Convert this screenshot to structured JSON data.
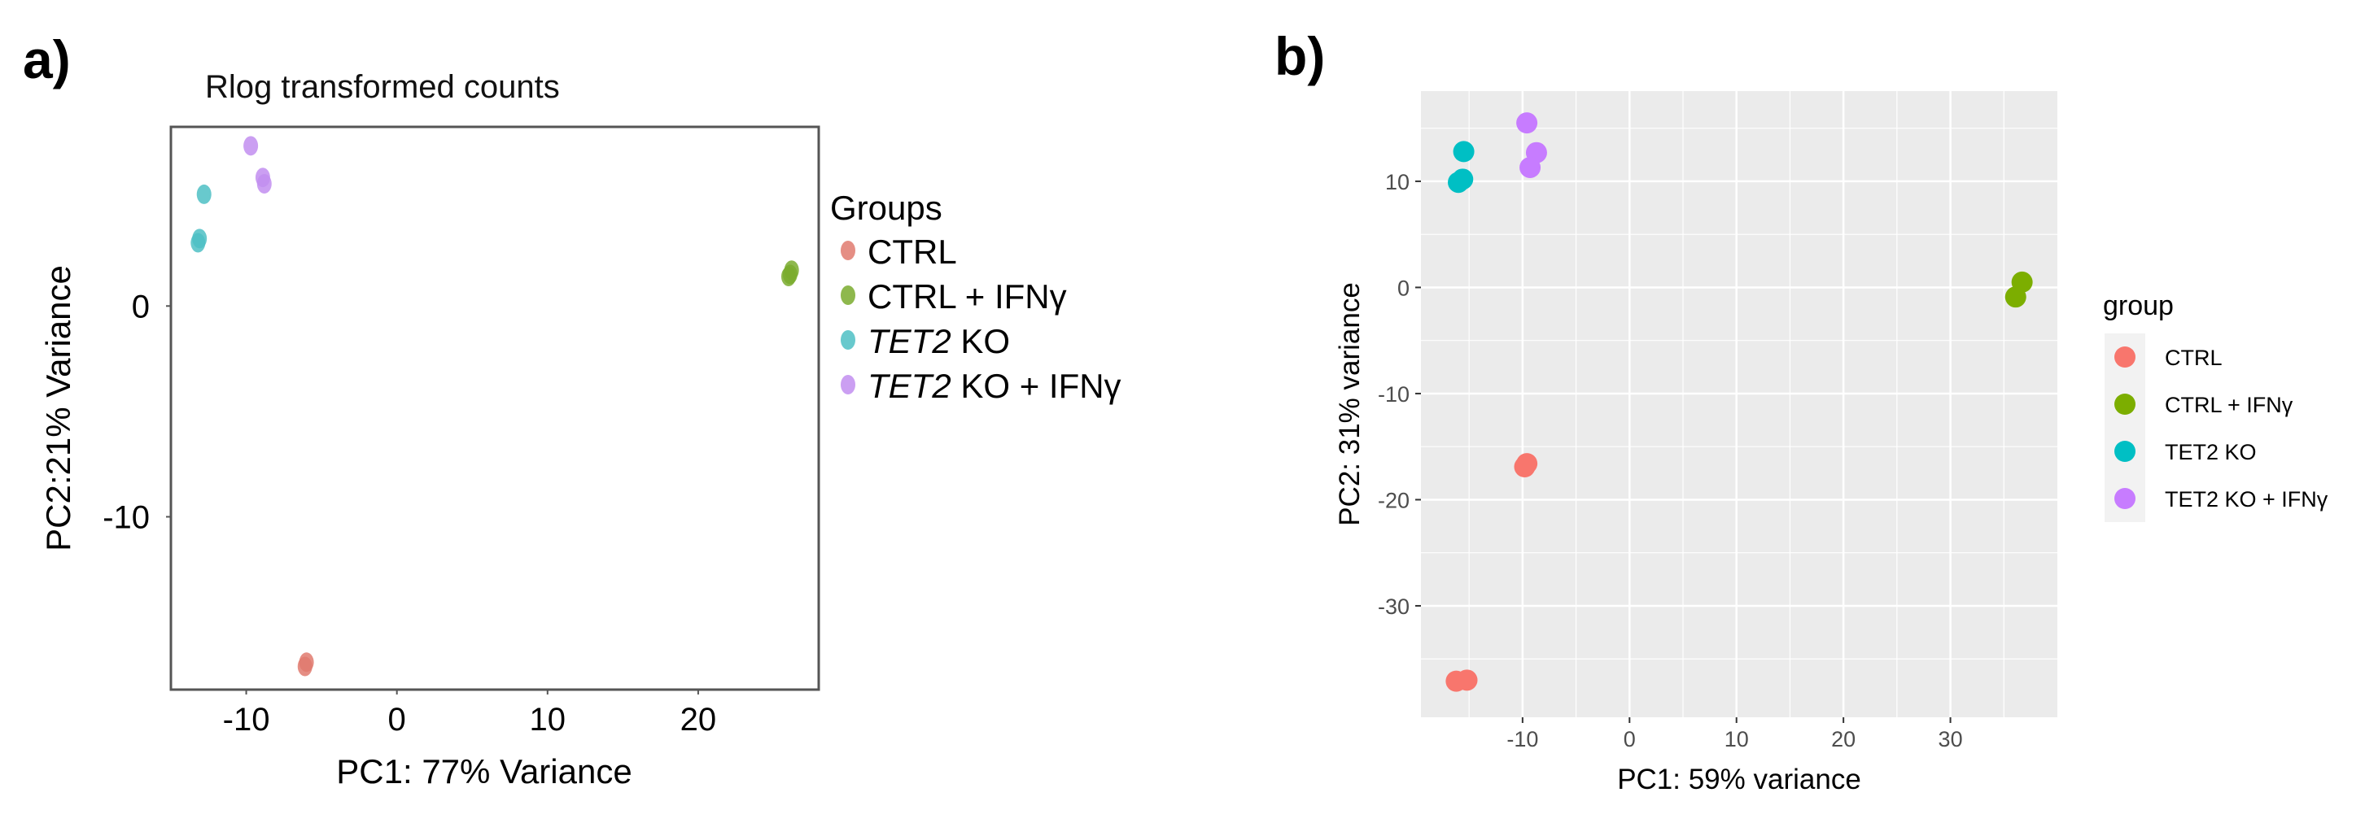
{
  "chart_data": [
    {
      "panel": "a)",
      "type": "scatter",
      "title": "Rlog transformed counts",
      "xlabel": "PC1: 77% Variance",
      "ylabel": "PC2:21% Variance",
      "xlim": [
        -15,
        28
      ],
      "ylim": [
        -18.2,
        8.5
      ],
      "xticks": [
        -10,
        0,
        10,
        20
      ],
      "yticks": [
        0,
        -10
      ],
      "grid": false,
      "legend_title": "Groups",
      "legend_position": "right",
      "series": [
        {
          "name": "CTRL",
          "name_parts": [
            {
              "text": "CTRL",
              "italic": false
            }
          ],
          "color": "#e07a6e",
          "x": [
            -6.1,
            -6.0
          ],
          "y": [
            -17.1,
            -16.9
          ]
        },
        {
          "name": "CTRL + IFNγ",
          "name_parts": [
            {
              "text": "CTRL + IFNγ",
              "italic": false
            }
          ],
          "color": "#7aab2e",
          "x": [
            26.0,
            26.2,
            26.1
          ],
          "y": [
            1.4,
            1.7,
            1.5
          ]
        },
        {
          "name": "TET2 KO",
          "name_parts": [
            {
              "text": "TET2",
              "italic": true
            },
            {
              "text": " KO",
              "italic": false
            }
          ],
          "color": "#4dbfc4",
          "x": [
            -12.8,
            -13.1,
            -13.2
          ],
          "y": [
            5.3,
            3.2,
            3.0
          ]
        },
        {
          "name": "TET2 KO + IFNγ",
          "name_parts": [
            {
              "text": "TET2",
              "italic": true
            },
            {
              "text": " KO + IFNγ",
              "italic": false
            }
          ],
          "color": "#c28ef0",
          "x": [
            -9.7,
            -8.9,
            -8.8
          ],
          "y": [
            7.6,
            6.1,
            5.8
          ]
        }
      ]
    },
    {
      "panel": "b)",
      "type": "scatter",
      "title": "",
      "xlabel": "PC1: 59% variance",
      "ylabel": "PC2: 31% variance",
      "xlim": [
        -19.5,
        40
      ],
      "ylim": [
        -40.5,
        18.5
      ],
      "xticks": [
        -10,
        0,
        10,
        20,
        30
      ],
      "yticks": [
        10,
        0,
        -10,
        -20,
        -30
      ],
      "grid": true,
      "background": "#ebebeb",
      "legend_title": "group",
      "legend_position": "right",
      "series": [
        {
          "name": "CTRL",
          "color": "#f8766d",
          "x": [
            -9.8,
            -9.6,
            -16.2,
            -15.2
          ],
          "y": [
            -16.9,
            -16.6,
            -37.1,
            -37.0
          ]
        },
        {
          "name": "CTRL + IFNγ",
          "color": "#7cae00",
          "x": [
            36.7,
            36.1
          ],
          "y": [
            0.5,
            -0.9
          ]
        },
        {
          "name": "TET2 KO",
          "color": "#00bfc4",
          "x": [
            -15.5,
            -16.0,
            -15.6
          ],
          "y": [
            12.8,
            9.9,
            10.2
          ]
        },
        {
          "name": "TET2 KO + IFNγ",
          "color": "#c77cff",
          "x": [
            -9.6,
            -8.7,
            -9.3
          ],
          "y": [
            15.5,
            12.7,
            11.3
          ]
        }
      ]
    }
  ]
}
